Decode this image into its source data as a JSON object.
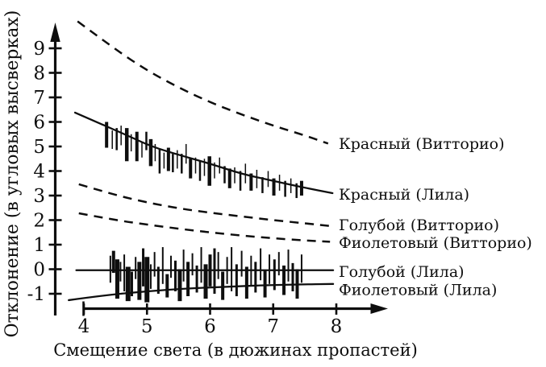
{
  "figure": {
    "background": "#ffffff",
    "ink": "#0e0e0e"
  },
  "chart_data": {
    "type": "line",
    "title": "",
    "xlabel": "Смещение света (в дюжинах пропастей)",
    "ylabel": "Отклонение (в угловых высверках)",
    "xlim": [
      3.7,
      8.4
    ],
    "ylim": [
      -1.6,
      10.6
    ],
    "x_ticks": [
      4,
      5,
      6,
      7,
      8
    ],
    "y_ticks": [
      -1,
      0,
      1,
      2,
      3,
      4,
      5,
      6,
      7,
      8,
      9
    ],
    "grid": false,
    "legend_position": "right-margin-labels",
    "series": [
      {
        "id": "red-vittorio",
        "name": "Красный (Витторио)",
        "style": "dashed",
        "points": [
          [
            3.9,
            10.1
          ],
          [
            4.5,
            8.95
          ],
          [
            5.0,
            8.1
          ],
          [
            5.5,
            7.4
          ],
          [
            6.0,
            6.8
          ],
          [
            6.5,
            6.3
          ],
          [
            7.0,
            5.85
          ],
          [
            7.5,
            5.45
          ],
          [
            7.87,
            5.12
          ]
        ]
      },
      {
        "id": "red-lila",
        "name": "Красный (Лила)",
        "style": "solid",
        "points": [
          [
            3.86,
            6.38
          ],
          [
            4.24,
            5.95
          ],
          [
            4.68,
            5.46
          ],
          [
            5.07,
            5.0
          ],
          [
            5.5,
            4.66
          ],
          [
            6.0,
            4.3
          ],
          [
            6.5,
            3.88
          ],
          [
            7.0,
            3.6
          ],
          [
            7.48,
            3.33
          ],
          [
            7.94,
            3.1
          ]
        ]
      },
      {
        "id": "blue-vittorio",
        "name": "Голубой (Витторио)",
        "style": "dashed",
        "points": [
          [
            3.92,
            3.46
          ],
          [
            4.5,
            3.02
          ],
          [
            5.0,
            2.72
          ],
          [
            5.5,
            2.48
          ],
          [
            6.0,
            2.3
          ],
          [
            6.5,
            2.15
          ],
          [
            7.0,
            2.0
          ],
          [
            7.5,
            1.87
          ],
          [
            7.9,
            1.76
          ]
        ]
      },
      {
        "id": "violet-vittorio",
        "name": "Фиолетовый (Витторио)",
        "style": "dashed",
        "points": [
          [
            3.92,
            2.28
          ],
          [
            4.5,
            2.0
          ],
          [
            5.0,
            1.82
          ],
          [
            5.5,
            1.65
          ],
          [
            6.0,
            1.5
          ],
          [
            6.5,
            1.37
          ],
          [
            7.0,
            1.26
          ],
          [
            7.5,
            1.17
          ],
          [
            7.9,
            1.12
          ]
        ]
      },
      {
        "id": "blue-lila",
        "name": "Голубой (Лила)",
        "style": "solid",
        "points": [
          [
            3.88,
            -0.04
          ],
          [
            7.95,
            -0.04
          ]
        ]
      },
      {
        "id": "violet-lila",
        "name": "Фиолетовый (Лила)",
        "style": "solid",
        "points": [
          [
            3.76,
            -1.26
          ],
          [
            4.36,
            -1.05
          ],
          [
            5.0,
            -0.9
          ],
          [
            5.6,
            -0.79
          ],
          [
            6.2,
            -0.72
          ],
          [
            6.8,
            -0.66
          ],
          [
            7.4,
            -0.62
          ],
          [
            7.95,
            -0.6
          ]
        ]
      }
    ],
    "legend_labels": [
      {
        "id": "red-vittorio",
        "text": "Красный (Витторио)",
        "y": 5.13
      },
      {
        "id": "red-lila",
        "text": "Красный (Лила)",
        "y": 3.07
      },
      {
        "id": "blue-vittorio",
        "text": "Голубой (Витторио)",
        "y": 1.82
      },
      {
        "id": "violet-vittorio",
        "text": "Фиолетовый (Витторио)",
        "y": 1.1
      },
      {
        "id": "blue-lila",
        "text": "Голубой (Лила)",
        "y": -0.08
      },
      {
        "id": "violet-lila",
        "text": "Фиолетовый (Лила)",
        "y": -0.82
      }
    ],
    "error_bars": {
      "red_lila": [
        [
          4.36,
          4.95,
          6.0,
          4
        ],
        [
          4.45,
          4.9,
          5.65,
          1.5
        ],
        [
          4.52,
          4.85,
          5.75,
          2.5
        ],
        [
          4.59,
          5.05,
          5.85,
          1.5
        ],
        [
          4.68,
          4.4,
          5.75,
          4.5
        ],
        [
          4.75,
          4.8,
          5.5,
          1.5
        ],
        [
          4.84,
          4.4,
          5.6,
          4
        ],
        [
          4.92,
          4.55,
          5.2,
          1.5
        ],
        [
          4.99,
          4.85,
          5.6,
          2.5
        ],
        [
          5.06,
          4.2,
          5.3,
          4.5
        ],
        [
          5.13,
          4.4,
          5.1,
          1.5
        ],
        [
          5.2,
          3.9,
          4.9,
          2.5
        ],
        [
          5.27,
          4.1,
          4.75,
          1.5
        ],
        [
          5.34,
          4.0,
          4.95,
          4
        ],
        [
          5.41,
          3.95,
          4.7,
          2.5
        ],
        [
          5.48,
          4.1,
          4.85,
          1.5
        ],
        [
          5.55,
          3.9,
          4.7,
          2.5
        ],
        [
          5.62,
          4.3,
          5.1,
          1.5
        ],
        [
          5.69,
          3.7,
          4.5,
          4
        ],
        [
          5.77,
          3.9,
          4.55,
          1.5
        ],
        [
          5.84,
          3.6,
          4.4,
          2.5
        ],
        [
          5.91,
          3.8,
          4.5,
          1.5
        ],
        [
          5.99,
          3.4,
          4.6,
          4.5
        ],
        [
          6.07,
          3.7,
          4.35,
          1.5
        ],
        [
          6.15,
          3.9,
          4.55,
          1.5
        ],
        [
          6.23,
          3.5,
          4.2,
          2.5
        ],
        [
          6.31,
          3.3,
          4.1,
          4
        ],
        [
          6.39,
          3.5,
          4.15,
          1.5
        ],
        [
          6.48,
          3.2,
          4.0,
          2.5
        ],
        [
          6.56,
          3.5,
          4.3,
          1.5
        ],
        [
          6.65,
          3.2,
          3.9,
          4
        ],
        [
          6.74,
          3.3,
          4.05,
          1.5
        ],
        [
          6.83,
          3.1,
          3.75,
          2.5
        ],
        [
          6.92,
          3.35,
          4.0,
          1.5
        ],
        [
          7.01,
          3.0,
          3.7,
          4
        ],
        [
          7.1,
          3.2,
          3.85,
          1.5
        ],
        [
          7.19,
          2.95,
          3.6,
          2.5
        ],
        [
          7.28,
          3.1,
          3.7,
          1.5
        ],
        [
          7.37,
          2.9,
          3.5,
          2.5
        ],
        [
          7.45,
          3.0,
          3.6,
          4
        ]
      ],
      "lila_zero_cluster": [
        [
          4.42,
          -0.55,
          0.55,
          2
        ],
        [
          4.47,
          -0.15,
          0.75,
          4
        ],
        [
          4.53,
          -1.2,
          0.4,
          5
        ],
        [
          4.58,
          -0.5,
          0.3,
          2
        ],
        [
          4.64,
          -0.9,
          0.6,
          2
        ],
        [
          4.7,
          -1.3,
          0.1,
          6
        ],
        [
          4.76,
          -1.1,
          -0.1,
          3
        ],
        [
          4.82,
          -0.4,
          0.5,
          2
        ],
        [
          4.88,
          -1.25,
          0.3,
          5
        ],
        [
          4.94,
          -0.7,
          0.85,
          3
        ],
        [
          5.0,
          -1.35,
          0.5,
          6
        ],
        [
          5.06,
          -0.8,
          0.2,
          2
        ],
        [
          5.12,
          -0.3,
          0.7,
          2
        ],
        [
          5.18,
          -1.0,
          0.1,
          3
        ],
        [
          5.25,
          -0.6,
          0.9,
          2
        ],
        [
          5.32,
          -1.15,
          -0.2,
          4
        ],
        [
          5.38,
          -0.35,
          0.55,
          2
        ],
        [
          5.45,
          -0.9,
          0.35,
          3
        ],
        [
          5.52,
          -1.3,
          0.0,
          5
        ],
        [
          5.58,
          -0.5,
          0.8,
          2
        ],
        [
          5.65,
          -1.1,
          0.3,
          4
        ],
        [
          5.72,
          -0.25,
          0.65,
          2
        ],
        [
          5.79,
          -0.95,
          0.15,
          3
        ],
        [
          5.86,
          -0.55,
          0.9,
          2
        ],
        [
          5.93,
          -1.2,
          0.2,
          5
        ],
        [
          6.0,
          -0.7,
          0.6,
          4
        ],
        [
          6.07,
          -1.0,
          0.85,
          3
        ],
        [
          6.13,
          -0.4,
          0.7,
          2
        ],
        [
          6.2,
          -1.25,
          -0.1,
          4
        ],
        [
          6.27,
          -0.6,
          0.5,
          2
        ],
        [
          6.34,
          -0.9,
          0.9,
          2
        ],
        [
          6.42,
          -1.1,
          0.2,
          3
        ],
        [
          6.5,
          -0.3,
          0.75,
          2
        ],
        [
          6.58,
          -1.2,
          0.1,
          4
        ],
        [
          6.65,
          -0.7,
          0.55,
          2
        ],
        [
          6.72,
          -0.95,
          0.3,
          3
        ],
        [
          6.8,
          -0.45,
          0.85,
          2
        ],
        [
          6.87,
          -1.15,
          -0.05,
          4
        ],
        [
          6.94,
          -0.6,
          0.6,
          2
        ],
        [
          7.02,
          -0.85,
          0.4,
          3
        ],
        [
          7.09,
          -0.25,
          0.7,
          2
        ],
        [
          7.17,
          -1.05,
          0.15,
          4
        ],
        [
          7.24,
          -0.5,
          0.8,
          2
        ],
        [
          7.31,
          -0.9,
          0.25,
          3
        ],
        [
          7.38,
          -1.2,
          0.0,
          4
        ],
        [
          7.45,
          -0.55,
          0.6,
          2
        ]
      ]
    }
  }
}
